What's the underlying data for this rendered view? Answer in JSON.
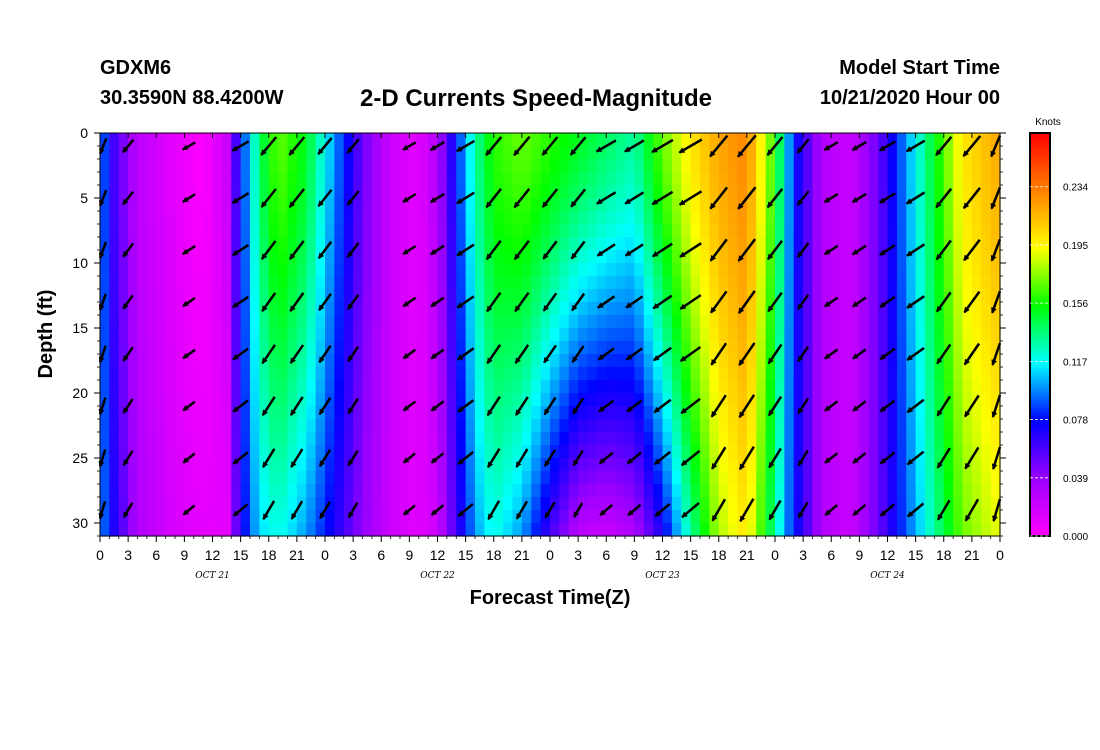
{
  "header": {
    "station": "GDXM6",
    "coords": "30.3590N 88.4200W",
    "title": "2-D Currents Speed-Magnitude",
    "model_start_label": "Model Start Time",
    "model_start_value": "10/21/2020 Hour 00"
  },
  "chart_data": {
    "type": "heatmap",
    "title": "2-D Currents Speed-Magnitude",
    "xlabel": "Forecast Time(Z)",
    "ylabel": "Depth (ft)",
    "x_unit": "hours since 10/21/2020 00Z",
    "x_range": [
      0,
      96
    ],
    "x_ticks": [
      "0",
      "3",
      "6",
      "9",
      "12",
      "15",
      "18",
      "21",
      "0",
      "3",
      "6",
      "9",
      "12",
      "15",
      "18",
      "21",
      "0",
      "3",
      "6",
      "9",
      "12",
      "15",
      "18",
      "21",
      "0",
      "3",
      "6",
      "9",
      "12",
      "15",
      "18",
      "21",
      "0"
    ],
    "day_labels": [
      {
        "label": "OCT 21",
        "at_hour": 12
      },
      {
        "label": "OCT 22",
        "at_hour": 36
      },
      {
        "label": "OCT 23",
        "at_hour": 60
      },
      {
        "label": "OCT 24",
        "at_hour": 84
      }
    ],
    "y_ticks": [
      0,
      5,
      10,
      15,
      20,
      25,
      30
    ],
    "y_range": [
      0,
      31
    ],
    "y_reversed": true,
    "colorbar": {
      "title": "Knots",
      "ticks": [
        0.234,
        0.195,
        0.156,
        0.117,
        0.078,
        0.039,
        0.0
      ],
      "range": [
        0,
        0.27
      ],
      "colors": [
        "#ff00ff",
        "#9a00ff",
        "#0000ff",
        "#00ffff",
        "#00ff00",
        "#ffff00",
        "#ff8000",
        "#ff0000"
      ]
    },
    "arrow_times": [
      0,
      3,
      9.5,
      15,
      18,
      21,
      24,
      27,
      33,
      36,
      39,
      42,
      45,
      48,
      51,
      54,
      57,
      60,
      63,
      66,
      69,
      72,
      75,
      78,
      81,
      84,
      87,
      90,
      93,
      96
    ],
    "arrow_depths": [
      1,
      5,
      9,
      13,
      17,
      21,
      25,
      29
    ],
    "speed_profile": [
      {
        "hour": 0,
        "surface": 0.1,
        "bottom": 0.1
      },
      {
        "hour": 1.5,
        "surface": 0.06,
        "bottom": 0.07
      },
      {
        "hour": 4,
        "surface": 0.025,
        "bottom": 0.03
      },
      {
        "hour": 8,
        "surface": 0.01,
        "bottom": 0.015
      },
      {
        "hour": 11,
        "surface": 0.0,
        "bottom": 0.01
      },
      {
        "hour": 13.5,
        "surface": 0.02,
        "bottom": 0.01
      },
      {
        "hour": 15,
        "surface": 0.08,
        "bottom": 0.07
      },
      {
        "hour": 17,
        "surface": 0.14,
        "bottom": 0.11
      },
      {
        "hour": 19,
        "surface": 0.17,
        "bottom": 0.12
      },
      {
        "hour": 22,
        "surface": 0.15,
        "bottom": 0.1
      },
      {
        "hour": 25,
        "surface": 0.1,
        "bottom": 0.07
      },
      {
        "hour": 28,
        "surface": 0.05,
        "bottom": 0.04
      },
      {
        "hour": 31,
        "surface": 0.02,
        "bottom": 0.02
      },
      {
        "hour": 34,
        "surface": 0.01,
        "bottom": 0.01
      },
      {
        "hour": 36,
        "surface": 0.03,
        "bottom": 0.02
      },
      {
        "hour": 38,
        "surface": 0.08,
        "bottom": 0.06
      },
      {
        "hour": 40,
        "surface": 0.13,
        "bottom": 0.1
      },
      {
        "hour": 42,
        "surface": 0.16,
        "bottom": 0.12
      },
      {
        "hour": 45,
        "surface": 0.17,
        "bottom": 0.1
      },
      {
        "hour": 48,
        "surface": 0.16,
        "bottom": 0.06
      },
      {
        "hour": 51,
        "surface": 0.15,
        "bottom": 0.025
      },
      {
        "hour": 54,
        "surface": 0.14,
        "bottom": 0.02
      },
      {
        "hour": 57,
        "surface": 0.13,
        "bottom": 0.03
      },
      {
        "hour": 60,
        "surface": 0.17,
        "bottom": 0.07
      },
      {
        "hour": 63,
        "surface": 0.2,
        "bottom": 0.13
      },
      {
        "hour": 66,
        "surface": 0.22,
        "bottom": 0.18
      },
      {
        "hour": 69,
        "surface": 0.23,
        "bottom": 0.2
      },
      {
        "hour": 72,
        "surface": 0.16,
        "bottom": 0.13
      },
      {
        "hour": 74,
        "surface": 0.08,
        "bottom": 0.08
      },
      {
        "hour": 77,
        "surface": 0.03,
        "bottom": 0.03
      },
      {
        "hour": 80,
        "surface": 0.02,
        "bottom": 0.02
      },
      {
        "hour": 83,
        "surface": 0.05,
        "bottom": 0.05
      },
      {
        "hour": 86,
        "surface": 0.1,
        "bottom": 0.09
      },
      {
        "hour": 89,
        "surface": 0.15,
        "bottom": 0.13
      },
      {
        "hour": 92,
        "surface": 0.2,
        "bottom": 0.17
      },
      {
        "hour": 96,
        "surface": 0.22,
        "bottom": 0.19
      }
    ]
  }
}
